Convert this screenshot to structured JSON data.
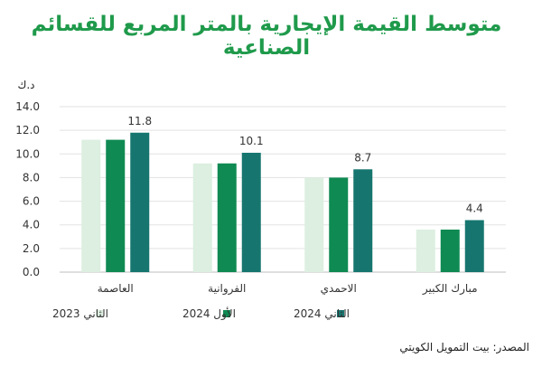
{
  "chart_data": {
    "type": "bar",
    "title": "متوسط القيمة الإيجارية بالمتر المربع للقسائم الصناعية",
    "unit_label": "د.ك",
    "categories": [
      "العاصمة",
      "الفروانية",
      "الاحمدي",
      "مبارك الكبير"
    ],
    "series": [
      {
        "name": "الثاني 2023",
        "color": "#dcefe0",
        "values": [
          11.2,
          9.2,
          8.0,
          3.6
        ]
      },
      {
        "name": "الأول 2024",
        "color": "#0f8a52",
        "values": [
          11.2,
          9.2,
          8.0,
          3.6
        ]
      },
      {
        "name": "الثاني 2024",
        "color": "#16766f",
        "values": [
          11.8,
          10.1,
          8.7,
          4.4
        ]
      }
    ],
    "data_labels": [
      "11.8",
      "10.1",
      "8.7",
      "4.4"
    ],
    "yticks": [
      "0.0",
      "2.0",
      "4.0",
      "6.0",
      "8.0",
      "10.0",
      "12.0",
      "14.0"
    ],
    "ylim": [
      0,
      14
    ],
    "grid": true,
    "legend_position": "bottom"
  },
  "source": "المصدر: بيت التمويل الكويتي"
}
